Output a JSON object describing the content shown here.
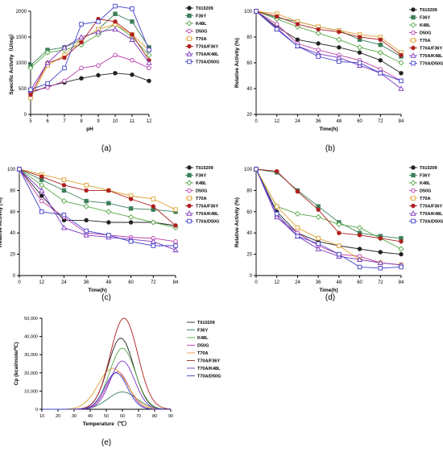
{
  "series_names": [
    "Tli10209",
    "F36Y",
    "K48L",
    "D50G",
    "T70A",
    "T70A/F36Y",
    "T70A/K48L",
    "T70A/D50G"
  ],
  "series_colors": [
    "#222222",
    "#3c7f5a",
    "#58a848",
    "#b73aa8",
    "#e0a030",
    "#b02020",
    "#7a35c0",
    "#4040c8"
  ],
  "series_markers": [
    "circle",
    "square",
    "diamond",
    "circle-open",
    "square-open",
    "circle",
    "triangle-open",
    "square-open"
  ],
  "chart_data": [
    {
      "panel_label": "(a)",
      "type": "line",
      "xlabel": "pH",
      "ylabel": "Specific Activity（U/mg）",
      "x": [
        5,
        6,
        7,
        8,
        9,
        10,
        11,
        12
      ],
      "xticks": [
        "5",
        "6",
        "7",
        "8",
        "9",
        "10",
        "11",
        "12"
      ],
      "ylim": [
        0,
        2000
      ],
      "yticks": [
        "0",
        "500",
        "1000",
        "1500",
        "2000"
      ],
      "series": [
        {
          "name": "Tli10209",
          "values": [
            420,
            540,
            620,
            700,
            760,
            800,
            770,
            650
          ]
        },
        {
          "name": "F36Y",
          "values": [
            950,
            1250,
            1300,
            1450,
            1650,
            1950,
            1800,
            1300
          ]
        },
        {
          "name": "K48L",
          "values": [
            900,
            1200,
            1250,
            1350,
            1550,
            1750,
            1500,
            1150
          ]
        },
        {
          "name": "D50G",
          "values": [
            450,
            520,
            650,
            900,
            950,
            1150,
            1050,
            900
          ]
        },
        {
          "name": "T70A",
          "values": [
            320,
            950,
            1150,
            1450,
            1650,
            1750,
            1550,
            1250
          ]
        },
        {
          "name": "T70A/F36Y",
          "values": [
            380,
            1000,
            1100,
            1400,
            1850,
            1800,
            1550,
            1050
          ]
        },
        {
          "name": "T70A/K48L",
          "values": [
            470,
            1000,
            1300,
            1500,
            1600,
            1650,
            1450,
            1000
          ]
        },
        {
          "name": "T70A/D50G",
          "values": [
            480,
            600,
            900,
            1750,
            1800,
            2100,
            2050,
            1250
          ]
        }
      ]
    },
    {
      "panel_label": "(b)",
      "type": "line",
      "xlabel": "Time(h)",
      "ylabel": "Relative Activity (%)",
      "x": [
        0,
        12,
        24,
        36,
        48,
        60,
        72,
        84
      ],
      "xticks": [
        "0",
        "12",
        "24",
        "36",
        "48",
        "60",
        "72",
        "84"
      ],
      "ylim": [
        20,
        100
      ],
      "yticks": [
        "20",
        "40",
        "60",
        "80",
        "100"
      ],
      "series": [
        {
          "name": "Tli10209",
          "values": [
            100,
            88,
            78,
            75,
            72,
            68,
            62,
            52
          ]
        },
        {
          "name": "F36Y",
          "values": [
            100,
            95,
            92,
            88,
            85,
            78,
            74,
            65
          ]
        },
        {
          "name": "K48L",
          "values": [
            100,
            94,
            88,
            83,
            78,
            72,
            68,
            60
          ]
        },
        {
          "name": "D50G",
          "values": [
            100,
            90,
            75,
            70,
            66,
            62,
            55,
            46
          ]
        },
        {
          "name": "T70A",
          "values": [
            100,
            98,
            92,
            88,
            85,
            82,
            80,
            68
          ]
        },
        {
          "name": "T70A/F36Y",
          "values": [
            100,
            96,
            90,
            86,
            84,
            80,
            78,
            66
          ]
        },
        {
          "name": "T70A/K48L",
          "values": [
            100,
            87,
            73,
            67,
            64,
            58,
            52,
            40
          ]
        },
        {
          "name": "T70A/D50G",
          "values": [
            100,
            86,
            73,
            65,
            61,
            60,
            52,
            46
          ]
        }
      ]
    },
    {
      "panel_label": "(c)",
      "type": "line",
      "xlabel": "Time(h)",
      "ylabel": "Relative Activity (%)",
      "x": [
        0,
        12,
        24,
        36,
        48,
        60,
        72,
        84
      ],
      "xticks": [
        "0",
        "12",
        "24",
        "36",
        "48",
        "60",
        "72",
        "84"
      ],
      "ylim": [
        0,
        100
      ],
      "yticks": [
        "0",
        "20",
        "40",
        "60",
        "80",
        "100"
      ],
      "series": [
        {
          "name": "Tli10209",
          "values": [
            100,
            75,
            52,
            52,
            50,
            50,
            50,
            47
          ]
        },
        {
          "name": "F36Y",
          "values": [
            100,
            90,
            80,
            70,
            68,
            63,
            62,
            60
          ]
        },
        {
          "name": "K48L",
          "values": [
            100,
            85,
            70,
            65,
            60,
            55,
            50,
            45
          ]
        },
        {
          "name": "D50G",
          "values": [
            100,
            70,
            55,
            40,
            38,
            36,
            35,
            32
          ]
        },
        {
          "name": "T70A",
          "values": [
            100,
            95,
            90,
            85,
            80,
            75,
            72,
            62
          ]
        },
        {
          "name": "T70A/F36Y",
          "values": [
            100,
            93,
            85,
            80,
            80,
            72,
            65,
            47
          ]
        },
        {
          "name": "T70A/K48L",
          "values": [
            100,
            80,
            45,
            38,
            36,
            34,
            32,
            24
          ]
        },
        {
          "name": "T70A/D50G",
          "values": [
            100,
            60,
            57,
            42,
            38,
            32,
            28,
            28
          ]
        }
      ]
    },
    {
      "panel_label": "(d)",
      "type": "line",
      "xlabel": "Time(h)",
      "ylabel": "Relative Activity (%)",
      "x": [
        0,
        12,
        24,
        36,
        48,
        60,
        72,
        84
      ],
      "xticks": [
        "0",
        "12",
        "24",
        "36",
        "48",
        "60",
        "72",
        "84"
      ],
      "ylim": [
        0,
        100
      ],
      "yticks": [
        "0",
        "20",
        "40",
        "60",
        "80",
        "100"
      ],
      "series": [
        {
          "name": "Tli10209",
          "values": [
            100,
            60,
            40,
            32,
            28,
            25,
            22,
            20
          ]
        },
        {
          "name": "F36Y",
          "values": [
            100,
            97,
            80,
            65,
            50,
            40,
            37,
            35
          ]
        },
        {
          "name": "K48L",
          "values": [
            100,
            65,
            58,
            55,
            48,
            45,
            35,
            25
          ]
        },
        {
          "name": "D50G",
          "values": [
            100,
            55,
            40,
            28,
            20,
            18,
            12,
            10
          ]
        },
        {
          "name": "T70A",
          "values": [
            100,
            65,
            45,
            35,
            28,
            15,
            12,
            10
          ]
        },
        {
          "name": "T70A/F36Y",
          "values": [
            100,
            98,
            79,
            62,
            40,
            38,
            35,
            32
          ]
        },
        {
          "name": "T70A/K48L",
          "values": [
            100,
            55,
            37,
            25,
            18,
            15,
            12,
            10
          ]
        },
        {
          "name": "T70A/D50G",
          "values": [
            100,
            58,
            37,
            30,
            20,
            8,
            7,
            8
          ]
        }
      ]
    },
    {
      "panel_label": "(e)",
      "type": "line",
      "xlabel": "Temperature（℃）",
      "ylabel": "Cp (kcal/mole/℃)",
      "x": [
        10,
        20,
        30,
        40,
        50,
        60,
        70,
        80,
        90
      ],
      "xticks": [
        "10",
        "20",
        "30",
        "40",
        "50",
        "60",
        "70",
        "80",
        "90"
      ],
      "ylim": [
        0,
        50000
      ],
      "yticks": [
        "0",
        "10,000",
        "20,000",
        "30,000",
        "40,000",
        "50,000"
      ],
      "curves": [
        {
          "name": "Tli10209",
          "peak_x": 59,
          "peak_y": 39000,
          "width": 8
        },
        {
          "name": "F36Y",
          "peak_x": 60,
          "peak_y": 9500,
          "width": 9
        },
        {
          "name": "K48L",
          "peak_x": 60,
          "peak_y": 33500,
          "width": 8
        },
        {
          "name": "D50G",
          "peak_x": 57,
          "peak_y": 20500,
          "width": 7
        },
        {
          "name": "T70A",
          "peak_x": 54,
          "peak_y": 22500,
          "width": 9
        },
        {
          "name": "T70A/F36Y",
          "peak_x": 61,
          "peak_y": 50000,
          "width": 8.5
        },
        {
          "name": "T70A/K48L",
          "peak_x": 60,
          "peak_y": 26500,
          "width": 7.5
        },
        {
          "name": "T70A/D50G",
          "peak_x": 56,
          "peak_y": 20000,
          "width": 7
        }
      ]
    }
  ]
}
